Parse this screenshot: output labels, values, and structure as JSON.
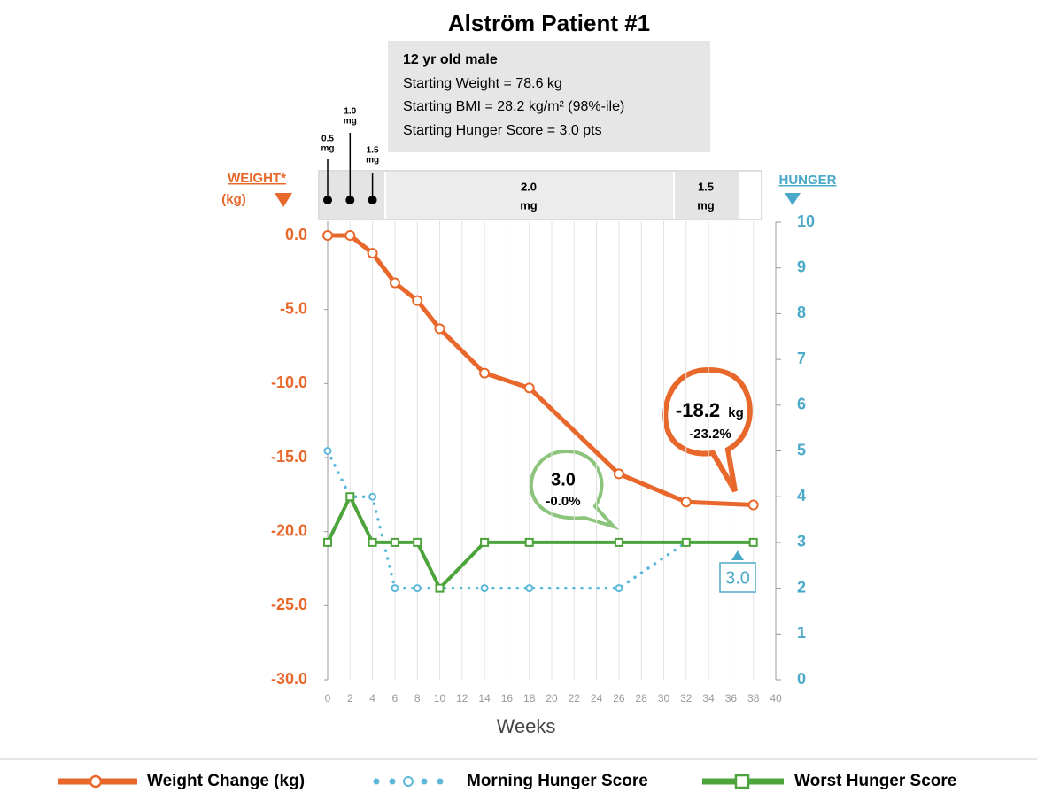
{
  "chart_data": {
    "type": "line",
    "title": "Alström Patient #1",
    "info": [
      "12 yr old male",
      "Starting Weight = 78.6 kg",
      "Starting BMI = 28.2 kg/m² (98%-ile)",
      "Starting Hunger Score = 3.0 pts"
    ],
    "doses": [
      {
        "dose": "0.5",
        "unit": "mg"
      },
      {
        "dose": "1.0",
        "unit": "mg"
      },
      {
        "dose": "1.5",
        "unit": "mg"
      },
      {
        "dose": "2.0",
        "unit": "mg"
      },
      {
        "dose": "1.5",
        "unit": "mg"
      }
    ],
    "y_label": [
      "WEIGHT*",
      "(kg)"
    ],
    "y2_label": "HUNGER",
    "x_label": "Weeks",
    "x": [
      0,
      2,
      4,
      6,
      8,
      10,
      14,
      18,
      26,
      32,
      38
    ],
    "xlim": [
      0,
      40
    ],
    "xticks": [
      0,
      2,
      4,
      6,
      8,
      10,
      12,
      14,
      16,
      18,
      20,
      22,
      24,
      26,
      28,
      30,
      32,
      34,
      36,
      38,
      40
    ],
    "ylim": [
      -30,
      0
    ],
    "yticks": [
      {
        "value": 0,
        "label": "0.0"
      },
      {
        "value": -5,
        "label": "-5.0"
      },
      {
        "value": -10,
        "label": "-10.0"
      },
      {
        "value": -15,
        "label": "-15.0"
      },
      {
        "value": -20,
        "label": "-20.0"
      },
      {
        "value": -25,
        "label": "-25.0"
      },
      {
        "value": -30,
        "label": "-30.0"
      }
    ],
    "y2lim": [
      0,
      10
    ],
    "y2ticks": [
      0,
      1,
      2,
      3,
      4,
      5,
      6,
      7,
      8,
      9,
      10
    ],
    "grid": true,
    "series": [
      {
        "name": "Weight Change (kg)",
        "color": "#e8672a",
        "values": [
          0,
          0,
          -1.2,
          -3.2,
          -4.4,
          -6.3,
          -9.3,
          -10.3,
          -16.1,
          -18.0,
          -18.2
        ]
      },
      {
        "name": "Morning Hunger Score",
        "color": "#5bb8d9",
        "axis": "y2",
        "values": [
          5,
          4,
          4,
          2,
          2,
          2,
          2,
          2,
          2,
          3,
          3
        ]
      },
      {
        "name": "Worst Hunger Score",
        "color": "#4ea43c",
        "axis": "y2",
        "values": [
          3,
          4,
          3,
          3,
          3,
          2,
          3,
          3,
          3,
          3,
          3
        ]
      }
    ],
    "annotations": {
      "weight": {
        "value": "-18.2",
        "unit": "kg",
        "pct": "-23.2%"
      },
      "worst": {
        "value": "3.0",
        "pct": "-0.0%"
      },
      "morning": "3.0"
    }
  }
}
